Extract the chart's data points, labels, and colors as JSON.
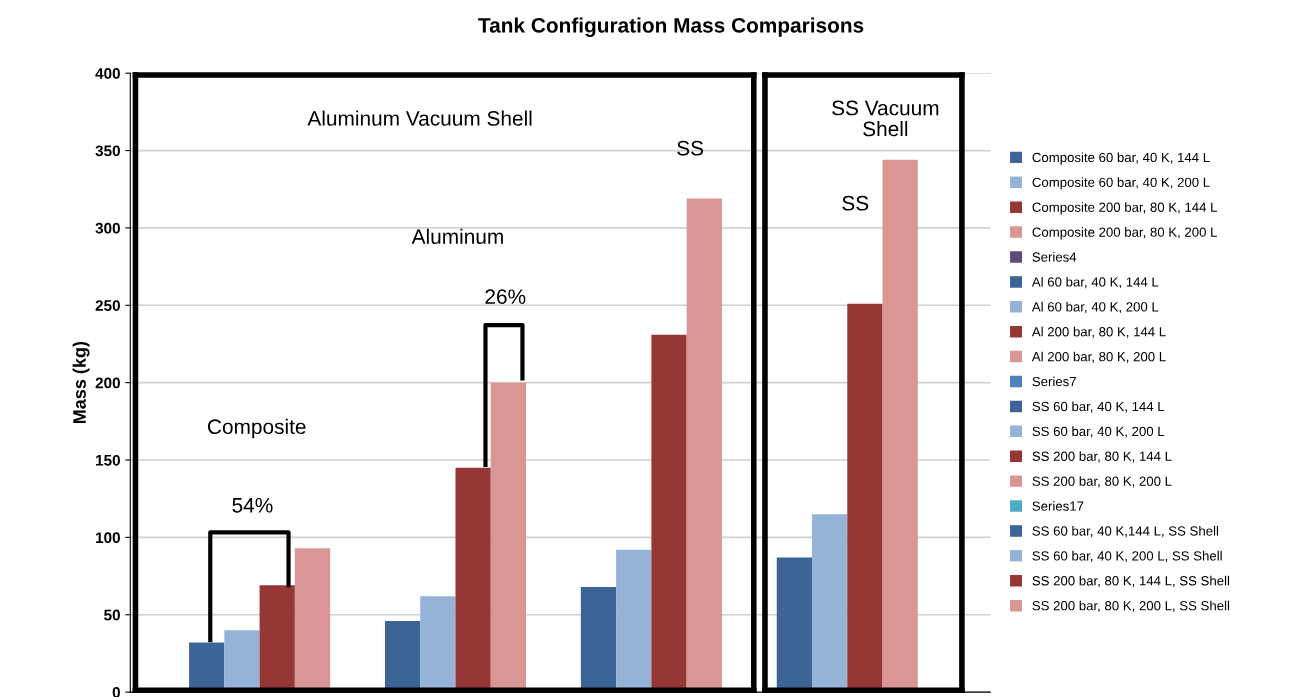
{
  "chart_data": {
    "type": "bar",
    "title": "Tank Configuration Mass Comparisons",
    "ylabel": "Mass (kg)",
    "categories": [
      null,
      null,
      null,
      null
    ],
    "ylim": [
      0,
      400
    ],
    "yticks": [
      0,
      50,
      100,
      150,
      200,
      250,
      300,
      350,
      400
    ],
    "grid": "y",
    "legend": "right",
    "series": [
      {
        "name": "Composite 60 bar, 40 K, 144 L",
        "color": "#3c6496",
        "values": [
          32,
          null,
          null,
          null
        ]
      },
      {
        "name": "Composite 60 bar, 40 K, 200 L",
        "color": "#95b3d7",
        "values": [
          40,
          null,
          null,
          null
        ]
      },
      {
        "name": "Composite 200 bar, 80 K, 144 L",
        "color": "#953735",
        "values": [
          69,
          null,
          null,
          null
        ]
      },
      {
        "name": "Composite 200 bar, 80 K, 200 L",
        "color": "#d99694",
        "values": [
          93,
          null,
          null,
          null
        ]
      },
      {
        "name": "Series4",
        "color": "#604a7b",
        "values": [
          null,
          null,
          null,
          null
        ]
      },
      {
        "name": "Al 60 bar, 40 K, 144 L",
        "color": "#3c6496",
        "values": [
          null,
          46,
          null,
          null
        ]
      },
      {
        "name": "Al 60 bar, 40 K, 200 L",
        "color": "#95b3d7",
        "values": [
          null,
          62,
          null,
          null
        ]
      },
      {
        "name": "Al 200 bar, 80 K, 144 L",
        "color": "#953735",
        "values": [
          null,
          145,
          null,
          null
        ]
      },
      {
        "name": "Al 200 bar, 80 K, 200 L",
        "color": "#d99694",
        "values": [
          null,
          200,
          null,
          null
        ]
      },
      {
        "name": "Series7",
        "color": "#4f81bd",
        "values": [
          null,
          null,
          null,
          null
        ]
      },
      {
        "name": "SS 60 bar, 40 K, 144 L",
        "color": "#3c6496",
        "values": [
          null,
          null,
          68,
          null
        ]
      },
      {
        "name": "SS 60 bar, 40 K, 200 L",
        "color": "#95b3d7",
        "values": [
          null,
          null,
          92,
          null
        ]
      },
      {
        "name": "SS 200 bar, 80 K, 144 L",
        "color": "#953735",
        "values": [
          null,
          null,
          231,
          null
        ]
      },
      {
        "name": "SS 200 bar, 80 K, 200 L",
        "color": "#d99694",
        "values": [
          null,
          null,
          319,
          null
        ]
      },
      {
        "name": "Series17",
        "color": "#4bacc6",
        "values": [
          null,
          null,
          null,
          null
        ]
      },
      {
        "name": "SS 60 bar, 40 K,144 L, SS Shell",
        "color": "#3c6496",
        "values": [
          null,
          null,
          null,
          87
        ]
      },
      {
        "name": "SS 60 bar, 40 K, 200 L, SS Shell",
        "color": "#95b3d7",
        "values": [
          null,
          null,
          null,
          115
        ]
      },
      {
        "name": "SS 200 bar, 80 K, 144 L, SS Shell",
        "color": "#953735",
        "values": [
          null,
          null,
          null,
          251
        ]
      },
      {
        "name": "SS 200 bar, 80 K, 200 L, SS Shell",
        "color": "#d99694",
        "values": [
          null,
          null,
          null,
          344
        ]
      }
    ],
    "annotations": [
      "Aluminum Vacuum Shell",
      "SS Vacuum Shell",
      "SS",
      "SS",
      "Aluminum",
      "26%",
      "Composite",
      "54%"
    ]
  }
}
